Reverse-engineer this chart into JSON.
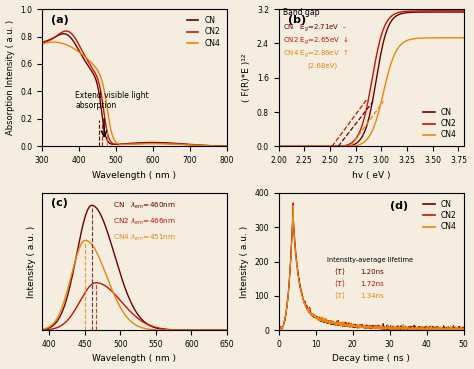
{
  "colors": {
    "CN": "#6B0000",
    "CN2": "#CC1100",
    "CN4": "#E8860A"
  },
  "bg_color": "#f5ede0",
  "panel_a": {
    "title": "(a)",
    "xlabel": "Wavelength ( nm )",
    "ylabel": "Absorption Intensity ( a.u. )",
    "xlim": [
      300,
      800
    ],
    "ylim": [
      0.0,
      1.0
    ],
    "yticks": [
      0.0,
      0.2,
      0.4,
      0.6,
      0.8,
      1.0
    ],
    "annotation": "Extend visible light\nabsorption"
  },
  "panel_b": {
    "title": "(b)",
    "xlabel": "hv ( eV )",
    "ylabel": "( F(R)*E )¹²",
    "xlim": [
      2.0,
      3.8
    ],
    "ylim": [
      0.0,
      3.2
    ],
    "yticks": [
      0.0,
      0.8,
      1.6,
      2.4,
      3.2
    ]
  },
  "panel_c": {
    "title": "(c)",
    "xlabel": "Wavelength ( nm )",
    "ylabel": "Intensity ( a.u. )",
    "xlim": [
      390,
      650
    ],
    "ylim": [
      0,
      1.1
    ],
    "CN_peak": 460,
    "CN2_peak": 466,
    "CN4_peak": 451
  },
  "panel_d": {
    "title": "(d)",
    "xlabel": "Decay time ( ns )",
    "ylabel": "Intensity ( a.u. )",
    "xlim": [
      0,
      50
    ],
    "ylim": [
      0,
      400
    ],
    "xticks": [
      0,
      10,
      20,
      30,
      40,
      50
    ],
    "yticks": [
      0,
      100,
      200,
      300,
      400
    ]
  }
}
